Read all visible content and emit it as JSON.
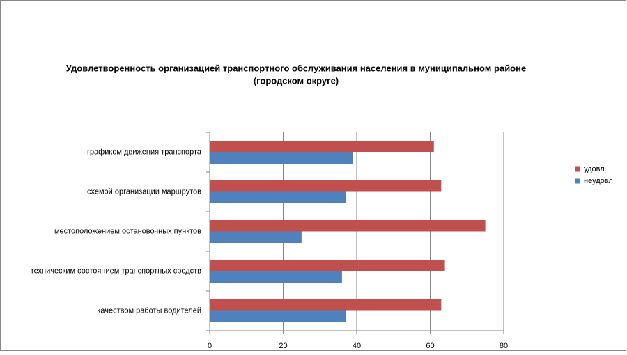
{
  "chart_data": {
    "type": "bar",
    "orientation": "horizontal",
    "title": [
      "Удовлетворенность организацией транспортного обслуживания населения в муниципальном районе",
      "(городском округе)"
    ],
    "categories": [
      "графиком движения транспорта",
      "схемой организации маршрутов",
      "местоположением остановочных пунктов",
      "техническим состоянием транспортных средств",
      "качеством работы водителей"
    ],
    "series": [
      {
        "name": "удовл",
        "color": "#c0504d",
        "values": [
          61,
          63,
          75,
          64,
          63
        ]
      },
      {
        "name": "неудовл",
        "color": "#4f81bd",
        "values": [
          39,
          37,
          25,
          36,
          37
        ]
      }
    ],
    "xlim": [
      0,
      80
    ],
    "xticks": [
      0,
      20,
      40,
      60,
      80
    ],
    "grid": true,
    "legend": "right"
  }
}
